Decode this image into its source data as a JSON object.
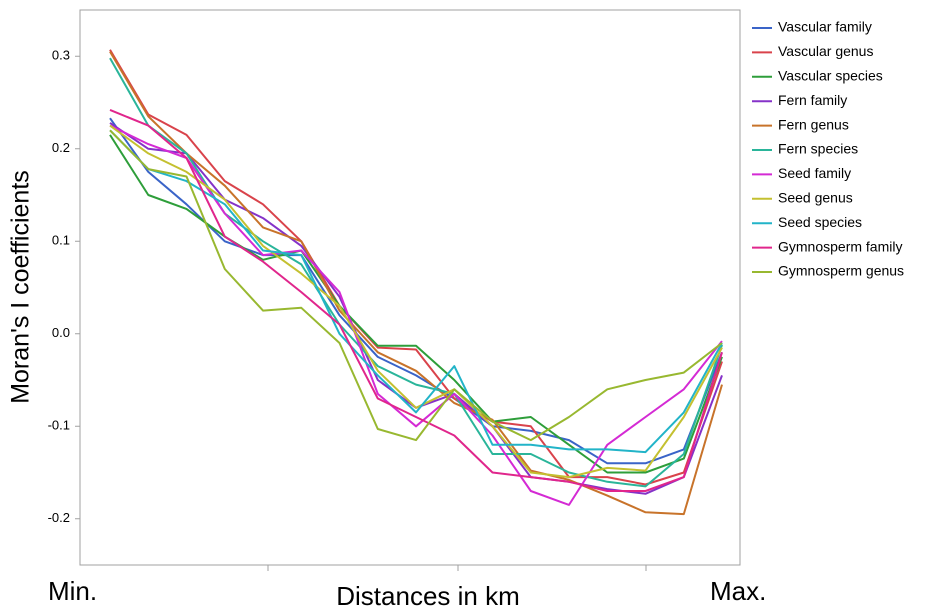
{
  "chart_data": {
    "type": "line",
    "ylabel": "Moran's I coefficients",
    "xlabel": "Distances in km",
    "x_labels": [
      "Min.",
      "Max."
    ],
    "ylim": [
      -0.25,
      0.35
    ],
    "yticks": [
      -0.2,
      -0.1,
      {
        "value": 0,
        "label": "0.0"
      },
      0.1,
      0.2,
      0.3
    ],
    "legend": "right",
    "series": [
      {
        "name": "Vascular family",
        "color": "#3a64c8",
        "values": [
          0.233,
          0.175,
          0.14,
          0.1,
          0.085,
          0.085,
          0.02,
          -0.025,
          -0.045,
          -0.07,
          -0.1,
          -0.105,
          -0.115,
          -0.14,
          -0.14,
          -0.125,
          -0.02
        ]
      },
      {
        "name": "Vascular genus",
        "color": "#d9434b",
        "values": [
          0.307,
          0.237,
          0.215,
          0.165,
          0.14,
          0.1,
          0.03,
          -0.015,
          -0.017,
          -0.07,
          -0.095,
          -0.1,
          -0.155,
          -0.155,
          -0.163,
          -0.15,
          -0.03
        ]
      },
      {
        "name": "Vascular species",
        "color": "#2e9e3a",
        "values": [
          0.215,
          0.15,
          0.135,
          0.105,
          0.08,
          0.09,
          0.03,
          -0.013,
          -0.013,
          -0.05,
          -0.095,
          -0.09,
          -0.12,
          -0.15,
          -0.15,
          -0.135,
          -0.025
        ]
      },
      {
        "name": "Fern family",
        "color": "#8532c8",
        "values": [
          0.228,
          0.2,
          0.195,
          0.145,
          0.125,
          0.095,
          0.04,
          -0.05,
          -0.08,
          -0.065,
          -0.1,
          -0.155,
          -0.16,
          -0.168,
          -0.173,
          -0.155,
          -0.045
        ]
      },
      {
        "name": "Fern genus",
        "color": "#c8732a",
        "values": [
          0.305,
          0.235,
          0.195,
          0.16,
          0.115,
          0.1,
          0.025,
          -0.02,
          -0.04,
          -0.075,
          -0.093,
          -0.148,
          -0.158,
          -0.175,
          -0.193,
          -0.195,
          -0.055
        ]
      },
      {
        "name": "Fern species",
        "color": "#2ab59a",
        "values": [
          0.298,
          0.225,
          0.195,
          0.13,
          0.1,
          0.075,
          0.01,
          -0.035,
          -0.055,
          -0.065,
          -0.13,
          -0.13,
          -0.15,
          -0.16,
          -0.165,
          -0.13,
          -0.012
        ]
      },
      {
        "name": "Seed family",
        "color": "#d42ad4",
        "values": [
          0.225,
          0.205,
          0.19,
          0.13,
          0.085,
          0.09,
          0.045,
          -0.065,
          -0.1,
          -0.065,
          -0.11,
          -0.17,
          -0.185,
          -0.12,
          -0.09,
          -0.06,
          -0.008
        ]
      },
      {
        "name": "Seed genus",
        "color": "#c4c030",
        "values": [
          0.225,
          0.195,
          0.175,
          0.145,
          0.095,
          0.065,
          0.03,
          -0.04,
          -0.08,
          -0.06,
          -0.1,
          -0.15,
          -0.155,
          -0.145,
          -0.148,
          -0.09,
          -0.015
        ]
      },
      {
        "name": "Seed species",
        "color": "#22b4c8",
        "values": [
          0.22,
          0.178,
          0.165,
          0.14,
          0.09,
          0.085,
          0.0,
          -0.045,
          -0.085,
          -0.035,
          -0.12,
          -0.12,
          -0.125,
          -0.125,
          -0.128,
          -0.085,
          -0.01
        ]
      },
      {
        "name": "Gymnosperm family",
        "color": "#e0268c",
        "values": [
          0.242,
          0.225,
          0.19,
          0.105,
          0.078,
          0.045,
          0.01,
          -0.07,
          -0.09,
          -0.11,
          -0.15,
          -0.155,
          -0.16,
          -0.17,
          -0.17,
          -0.155,
          -0.02
        ]
      },
      {
        "name": "Gymnosperm genus",
        "color": "#98b830",
        "values": [
          0.22,
          0.178,
          0.17,
          0.07,
          0.025,
          0.028,
          -0.01,
          -0.103,
          -0.115,
          -0.06,
          -0.095,
          -0.115,
          -0.09,
          -0.06,
          -0.05,
          -0.042,
          -0.01
        ]
      }
    ]
  }
}
